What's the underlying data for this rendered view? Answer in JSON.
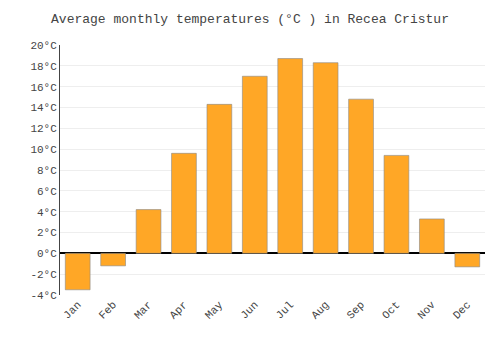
{
  "chart_data": {
    "type": "bar",
    "title": "Average monthly temperatures (°C ) in Recea Cristur",
    "categories": [
      "Jan",
      "Feb",
      "Mar",
      "Apr",
      "May",
      "Jun",
      "Jul",
      "Aug",
      "Sep",
      "Oct",
      "Nov",
      "Dec"
    ],
    "values": [
      -3.5,
      -1.2,
      4.2,
      9.6,
      14.3,
      17.0,
      18.7,
      18.3,
      14.8,
      9.4,
      3.3,
      -1.3
    ],
    "color": "#FFA726",
    "ylim": [
      -4,
      20
    ],
    "yticks": [
      {
        "value": -4,
        "label": "-4°C"
      },
      {
        "value": -2,
        "label": "-2°C"
      },
      {
        "value": 0,
        "label": "0°C"
      },
      {
        "value": 2,
        "label": "2°C"
      },
      {
        "value": 4,
        "label": "4°C"
      },
      {
        "value": 6,
        "label": "6°C"
      },
      {
        "value": 8,
        "label": "8°C"
      },
      {
        "value": 10,
        "label": "10°C"
      },
      {
        "value": 12,
        "label": "12°C"
      },
      {
        "value": 14,
        "label": "14°C"
      },
      {
        "value": 16,
        "label": "16°C"
      },
      {
        "value": 18,
        "label": "18°C"
      },
      {
        "value": 20,
        "label": "20°C"
      }
    ],
    "grid": true
  }
}
